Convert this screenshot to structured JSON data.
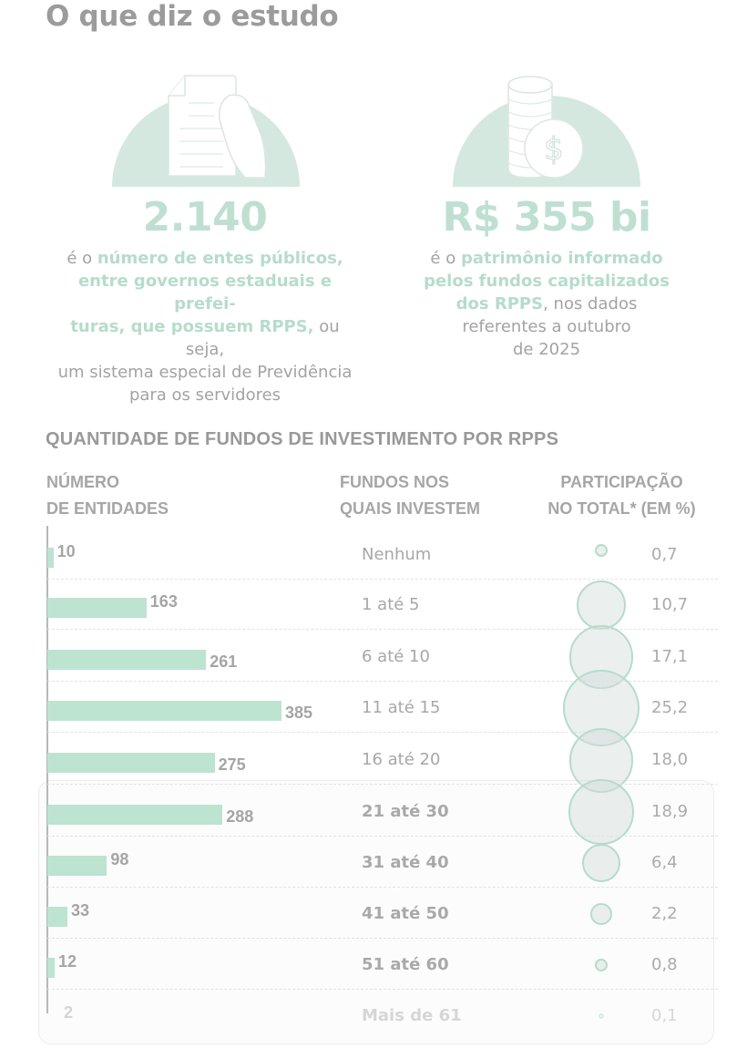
{
  "page": {
    "title": "O que diz o estudo"
  },
  "stats": [
    {
      "icon": "document-in-hand-icon",
      "value": "2.140",
      "desc_prefix": "é o ",
      "desc_highlight": "número de entes públicos, entre governos estaduais e prefei-turas, que possuem RPPS,",
      "desc_suffix": " ou seja, um sistema especial de Previdência para os servidores",
      "lines": [
        {
          "pre": "é o ",
          "hl": "número de entes públicos,",
          "post": ""
        },
        {
          "pre": "",
          "hl": "entre governos estaduais e prefei-",
          "post": ""
        },
        {
          "pre": "",
          "hl": "turas, que possuem RPPS,",
          "post": " ou seja,"
        },
        {
          "pre": "um sistema especial de Previdência",
          "hl": "",
          "post": ""
        },
        {
          "pre": "para os servidores",
          "hl": "",
          "post": ""
        }
      ]
    },
    {
      "icon": "coin-stack-dollar-icon",
      "value": "R$ 355 bi",
      "lines": [
        {
          "pre": "é o ",
          "hl": "patrimônio informado",
          "post": ""
        },
        {
          "pre": "",
          "hl": "pelos fundos capitalizados",
          "post": ""
        },
        {
          "pre": "",
          "hl": "dos RPPS",
          "post": ", nos dados"
        },
        {
          "pre": "referentes a outubro",
          "hl": "",
          "post": ""
        },
        {
          "pre": "de 2025",
          "hl": "",
          "post": ""
        }
      ]
    }
  ],
  "chart_header": {
    "title": "QUANTIDADE DE FUNDOS DE INVESTIMENTO POR RPPS",
    "col1": [
      "NÚMERO",
      "DE ENTIDADES"
    ],
    "col2": [
      "FUNDOS NOS",
      "QUAIS INVESTEM"
    ],
    "col3": [
      "PARTICIPAÇÃO",
      "NO TOTAL* (EM %)"
    ]
  },
  "colors": {
    "accent": "#bde3d1",
    "dome": "#d4e8df",
    "bubble_border": "#b5dccb",
    "text_gray": "#9b9b9b"
  },
  "chart_data": {
    "type": "bar",
    "title": "QUANTIDADE DE FUNDOS DE INVESTIMENTO POR RPPS",
    "xlabel": "NÚMERO DE ENTIDADES",
    "ylabel": "FUNDOS NOS QUAIS INVESTEM",
    "categories": [
      "Nenhum",
      "1 até 5",
      "6 até 10",
      "11 até 15",
      "16 até 20",
      "21 até 30",
      "31 até 40",
      "41 até 50",
      "51 até 60",
      "Mais de 61"
    ],
    "series": [
      {
        "name": "Número de entidades",
        "values": [
          10,
          163,
          261,
          385,
          275,
          288,
          98,
          33,
          12,
          2
        ]
      },
      {
        "name": "Participação no total* (em %)",
        "values": [
          0.7,
          10.7,
          17.1,
          25.2,
          18.0,
          18.9,
          6.4,
          2.2,
          0.8,
          0.1
        ]
      }
    ],
    "value_labels": [
      "10",
      "163",
      "261",
      "385",
      "275",
      "288",
      "98",
      "33",
      "12",
      "2"
    ],
    "pct_labels": [
      "0,7",
      "10,7",
      "17,1",
      "25,2",
      "18,0",
      "18,9",
      "6,4",
      "2,2",
      "0,8",
      "0,1"
    ],
    "grid": false,
    "legend": "column headers"
  }
}
